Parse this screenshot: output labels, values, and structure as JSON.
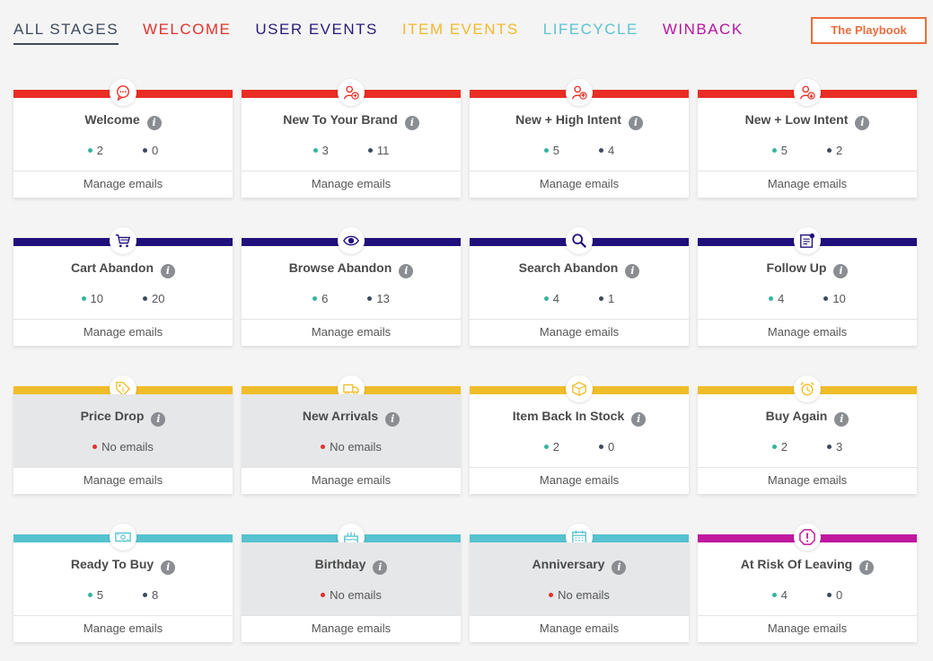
{
  "tabs": [
    {
      "label": "ALL STAGES",
      "color": "#3d4a5c",
      "active": true
    },
    {
      "label": "WELCOME",
      "color": "#e0322c"
    },
    {
      "label": "USER EVENTS",
      "color": "#2a1a7a"
    },
    {
      "label": "ITEM EVENTS",
      "color": "#f2b92c"
    },
    {
      "label": "LIFECYCLE",
      "color": "#5bc3d1"
    },
    {
      "label": "WINBACK",
      "color": "#b5179e"
    }
  ],
  "playbook_label": "The Playbook",
  "manage_label": "Manage emails",
  "no_emails_label": "No emails",
  "colors": {
    "red": "#e92d24",
    "navy": "#20107c",
    "yellow": "#f0bd2a",
    "teal": "#57c2cf",
    "magenta": "#c0189f"
  },
  "cards": [
    {
      "title": "Welcome",
      "bar": "red",
      "icon": "chat-icon",
      "active": "2",
      "inactive": "0"
    },
    {
      "title": "New To Your Brand",
      "bar": "red",
      "icon": "user-plus-icon",
      "active": "3",
      "inactive": "11"
    },
    {
      "title": "New + High Intent",
      "bar": "red",
      "icon": "user-up-icon",
      "active": "5",
      "inactive": "4"
    },
    {
      "title": "New + Low Intent",
      "bar": "red",
      "icon": "user-down-icon",
      "active": "5",
      "inactive": "2"
    },
    {
      "title": "Cart Abandon",
      "bar": "navy",
      "icon": "cart-icon",
      "active": "10",
      "inactive": "20"
    },
    {
      "title": "Browse Abandon",
      "bar": "navy",
      "icon": "eye-icon",
      "active": "6",
      "inactive": "13"
    },
    {
      "title": "Search Abandon",
      "bar": "navy",
      "icon": "search-icon",
      "active": "4",
      "inactive": "1"
    },
    {
      "title": "Follow Up",
      "bar": "navy",
      "icon": "note-icon",
      "active": "4",
      "inactive": "10"
    },
    {
      "title": "Price Drop",
      "bar": "yellow",
      "icon": "price-tag-icon",
      "empty": true
    },
    {
      "title": "New Arrivals",
      "bar": "yellow",
      "icon": "truck-icon",
      "empty": true
    },
    {
      "title": "Item Back In Stock",
      "bar": "yellow",
      "icon": "box-icon",
      "active": "2",
      "inactive": "0"
    },
    {
      "title": "Buy Again",
      "bar": "yellow",
      "icon": "alarm-clock-icon",
      "active": "2",
      "inactive": "3"
    },
    {
      "title": "Ready To Buy",
      "bar": "teal",
      "icon": "cash-icon",
      "active": "5",
      "inactive": "8"
    },
    {
      "title": "Birthday",
      "bar": "teal",
      "icon": "cake-icon",
      "empty": true
    },
    {
      "title": "Anniversary",
      "bar": "teal",
      "icon": "calendar-icon",
      "empty": true
    },
    {
      "title": "At Risk Of Leaving",
      "bar": "magenta",
      "icon": "warning-icon",
      "active": "4",
      "inactive": "0"
    }
  ]
}
